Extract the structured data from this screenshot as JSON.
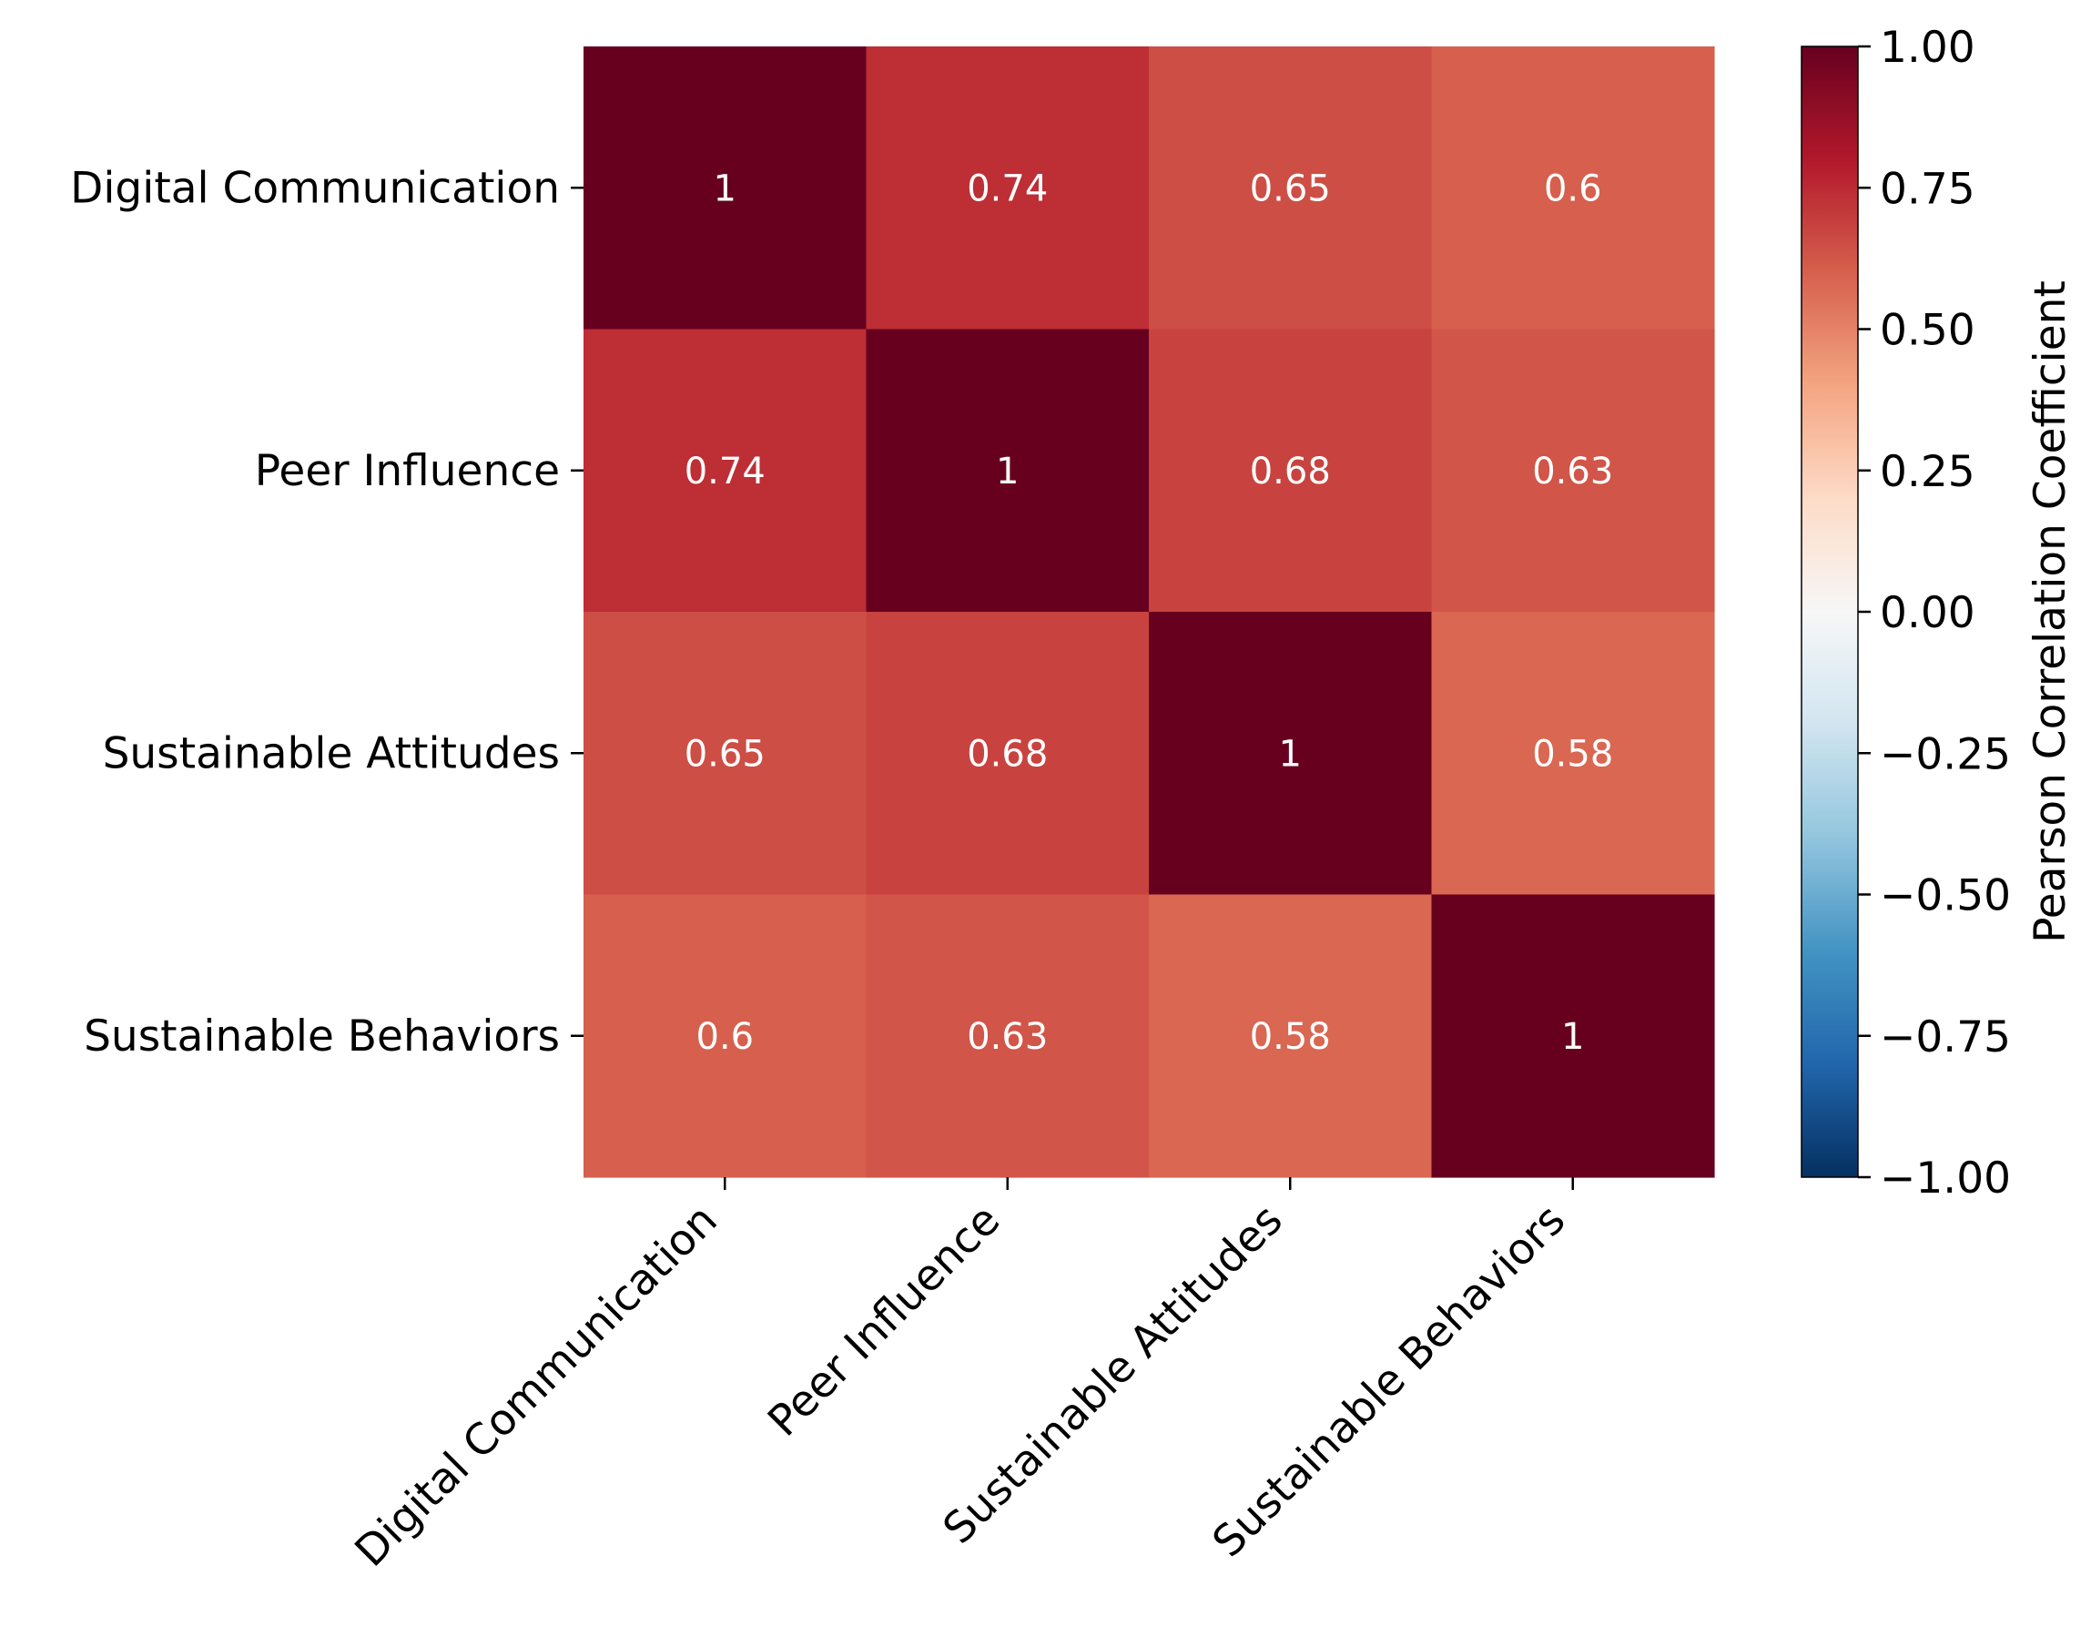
{
  "chart_data": {
    "type": "heatmap",
    "title": "",
    "xlabel": "",
    "ylabel": "",
    "x_categories": [
      "Digital Communication",
      "Peer Influence",
      "Sustainable Attitudes",
      "Sustainable Behaviors"
    ],
    "y_categories": [
      "Digital Communication",
      "Peer Influence",
      "Sustainable Attitudes",
      "Sustainable Behaviors"
    ],
    "values": [
      [
        1,
        0.74,
        0.65,
        0.6
      ],
      [
        0.74,
        1,
        0.68,
        0.63
      ],
      [
        0.65,
        0.68,
        1,
        0.58
      ],
      [
        0.6,
        0.63,
        0.58,
        1
      ]
    ],
    "value_labels": [
      [
        "1",
        "0.74",
        "0.65",
        "0.6"
      ],
      [
        "0.74",
        "1",
        "0.68",
        "0.63"
      ],
      [
        "0.65",
        "0.68",
        "1",
        "0.58"
      ],
      [
        "0.6",
        "0.63",
        "0.58",
        "1"
      ]
    ],
    "colorbar": {
      "label": "Pearson Correlation Coefficient",
      "range": [
        -1,
        1
      ],
      "ticks": [
        1,
        0.75,
        0.5,
        0.25,
        0,
        -0.25,
        -0.5,
        -0.75,
        -1
      ],
      "tick_labels": [
        "1.00",
        "0.75",
        "0.50",
        "0.25",
        "0.00",
        "−0.25",
        "−0.50",
        "−0.75",
        "−1.00"
      ]
    },
    "colormap": "RdBu_r",
    "colormap_stops": [
      {
        "value": -1.0,
        "color": "#053061"
      },
      {
        "value": -0.8,
        "color": "#2166ac"
      },
      {
        "value": -0.6,
        "color": "#4393c3"
      },
      {
        "value": -0.4,
        "color": "#92c5de"
      },
      {
        "value": -0.2,
        "color": "#d1e5f0"
      },
      {
        "value": 0.0,
        "color": "#f7f7f7"
      },
      {
        "value": 0.2,
        "color": "#fddbc7"
      },
      {
        "value": 0.4,
        "color": "#f4a582"
      },
      {
        "value": 0.6,
        "color": "#d6604d"
      },
      {
        "value": 0.8,
        "color": "#b2182b"
      },
      {
        "value": 1.0,
        "color": "#67001f"
      }
    ],
    "annotation_color": "#ffffff"
  }
}
